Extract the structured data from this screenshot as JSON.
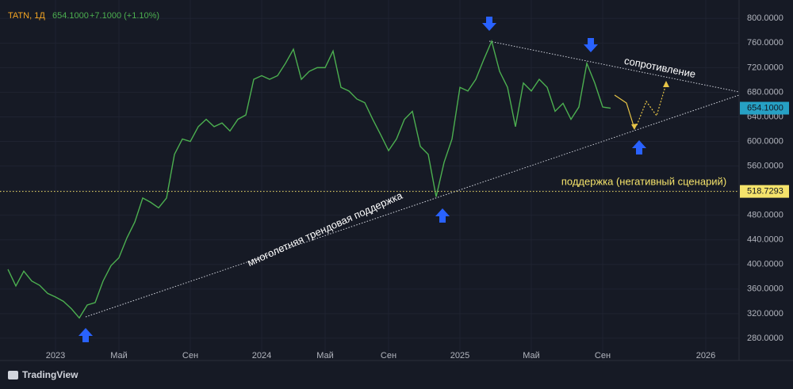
{
  "chart_data": {
    "type": "line",
    "header": {
      "symbol": "TATN, 1Д",
      "change": "+7.1000 (+1.10%)"
    },
    "categories": [
      null,
      null,
      null,
      null,
      null,
      null,
      "2023",
      null,
      null,
      null,
      null,
      null,
      null,
      null,
      "Май",
      null,
      null,
      null,
      null,
      null,
      null,
      null,
      null,
      "Сен",
      null,
      null,
      null,
      null,
      null,
      null,
      null,
      null,
      "2024",
      null,
      null,
      null,
      null,
      null,
      null,
      null,
      "Май",
      null,
      null,
      null,
      null,
      null,
      null,
      null,
      "Сен",
      null,
      null,
      null,
      null,
      null,
      null,
      null,
      null,
      "2025",
      null,
      null,
      null,
      null,
      null,
      null,
      null,
      null,
      "Май",
      null,
      null,
      null,
      null,
      null,
      null,
      null,
      null,
      "Сен",
      null,
      null,
      null,
      null,
      null,
      null,
      null,
      null,
      null,
      null,
      null,
      null,
      "2026",
      null,
      null,
      null,
      null
    ],
    "series": [
      {
        "name": "TATN",
        "color": "#4caf50",
        "values": [
          392,
          365,
          389,
          373,
          366,
          353,
          347,
          340,
          328,
          313,
          334,
          338,
          373,
          398,
          411,
          443,
          469,
          508,
          501,
          492,
          508,
          579,
          604,
          600,
          624,
          636,
          624,
          630,
          617,
          636,
          643,
          701,
          707,
          701,
          707,
          727,
          750,
          701,
          714,
          720,
          720,
          747,
          688,
          682,
          669,
          663,
          636,
          611,
          585,
          604,
          636,
          649,
          592,
          579,
          510,
          566,
          604,
          688,
          682,
          701,
          733,
          763,
          714,
          688,
          624,
          695,
          682,
          701,
          688,
          649,
          662,
          636,
          656,
          727,
          695,
          656,
          654,
          null,
          null,
          null,
          null,
          null,
          null,
          null,
          null,
          null,
          null,
          null,
          null,
          null,
          null,
          null,
          null
        ]
      }
    ],
    "last_price": {
      "value": 654.1,
      "label": "654.1000"
    },
    "support_level": {
      "value": 518.7293,
      "label": "518.7293"
    },
    "ylim": [
      267,
      830
    ],
    "yticks": [
      {
        "value": 280,
        "label": "280.0000"
      },
      {
        "value": 320,
        "label": "320.0000"
      },
      {
        "value": 360,
        "label": "360.0000"
      },
      {
        "value": 400,
        "label": "400.0000"
      },
      {
        "value": 440,
        "label": "440.0000"
      },
      {
        "value": 480,
        "label": "480.0000"
      },
      {
        "value": 520,
        "label": "520.0000"
      },
      {
        "value": 560,
        "label": "560.0000"
      },
      {
        "value": 600,
        "label": "600.0000"
      },
      {
        "value": 640,
        "label": "640.0000"
      },
      {
        "value": 680,
        "label": "680.0000"
      },
      {
        "value": 720,
        "label": "720.0000"
      },
      {
        "value": 760,
        "label": "760.0000"
      },
      {
        "value": 800,
        "label": "800.0000"
      }
    ],
    "grid": true,
    "annotations": {
      "resistance": "сопротивление",
      "negative_support": "поддержка (негативный сценарий)",
      "trend_support": "многолетняя трендовая поддержка"
    },
    "brand": "TradingView"
  }
}
